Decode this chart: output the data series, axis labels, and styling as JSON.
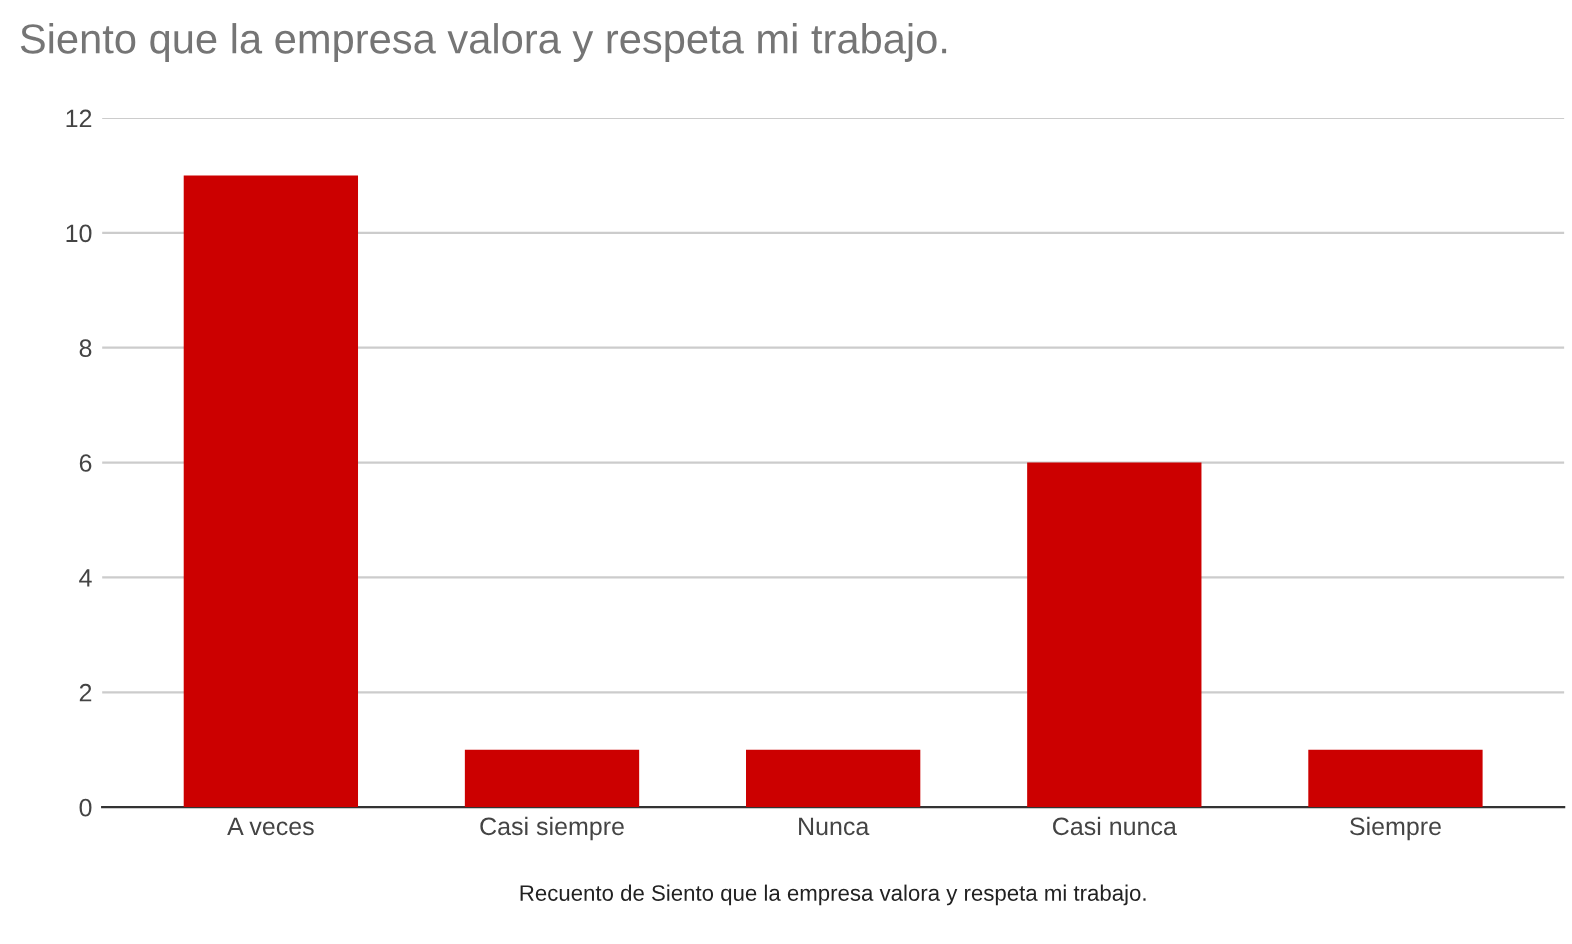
{
  "chart_data": {
    "type": "bar",
    "title": "Siento que la empresa valora y respeta mi trabajo.",
    "xlabel": "Recuento de Siento que la empresa valora y respeta mi trabajo.",
    "categories": [
      "A veces",
      "Casi siempre",
      "Nunca",
      "Casi nunca",
      "Siempre"
    ],
    "values": [
      11,
      1,
      1,
      6,
      1
    ],
    "color": "#cc0000",
    "ylim": [
      0,
      12
    ],
    "yticks": [
      0,
      2,
      4,
      6,
      8,
      10,
      12
    ],
    "grid": "y",
    "legend": false
  }
}
